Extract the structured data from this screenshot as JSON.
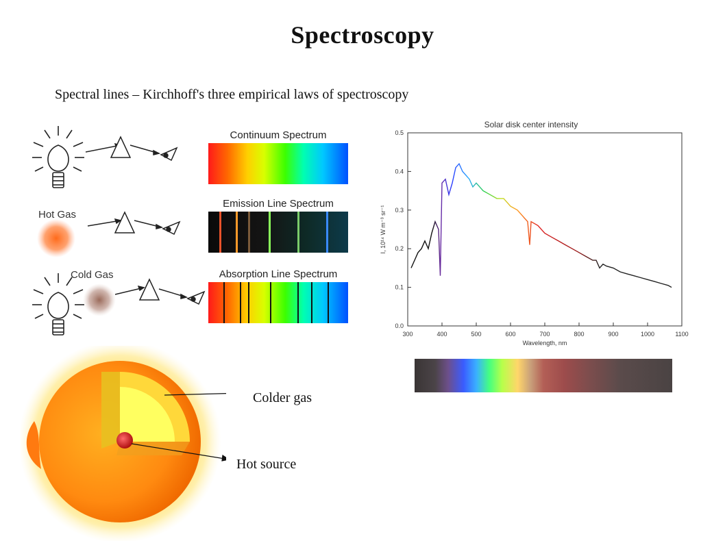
{
  "slide": {
    "title": "Spectroscopy",
    "subtitle": "Spectral lines – Kirchhoff's three empirical laws of spectroscopy"
  },
  "kirchhoff": {
    "continuum_label": "Continuum Spectrum",
    "emission_label": "Emission Line Spectrum",
    "absorption_label": "Absorption Line Spectrum",
    "hot_gas_label": "Hot Gas",
    "cold_gas_label": "Cold Gas",
    "emission_line_colors": [
      "#e8522a",
      "#ff9a2a",
      "#7a5a3a",
      "#8aff5a",
      "#7acc6a",
      "#3a8aff"
    ],
    "absorption_line_count": 7
  },
  "sun": {
    "colder_gas_label": "Colder gas",
    "hot_source_label": "Hot source"
  },
  "chart_data": {
    "type": "line",
    "title": "Solar disk center intensity",
    "xlabel": "Wavelength, nm",
    "ylabel": "I, 10¹⁴ W m⁻³ sr⁻¹",
    "xlim": [
      300,
      1100
    ],
    "ylim": [
      0.0,
      0.5
    ],
    "x_ticks": [
      300,
      400,
      500,
      600,
      700,
      800,
      900,
      1000,
      1100
    ],
    "y_ticks": [
      0.0,
      0.1,
      0.2,
      0.3,
      0.4,
      0.5
    ],
    "series": [
      {
        "x": [
          310,
          320,
          330,
          340,
          350,
          360,
          370,
          380,
          390,
          395,
          400,
          410,
          420,
          430,
          440,
          450,
          460,
          470,
          480,
          490,
          500,
          520,
          540,
          560,
          580,
          600,
          620,
          640,
          650,
          656,
          660,
          680,
          700,
          720,
          740,
          760,
          780,
          800,
          820,
          840,
          850,
          860,
          870,
          880,
          900,
          920,
          940,
          960,
          980,
          1000,
          1020,
          1040,
          1060,
          1070
        ],
        "y": [
          0.15,
          0.17,
          0.19,
          0.2,
          0.22,
          0.2,
          0.24,
          0.27,
          0.25,
          0.13,
          0.37,
          0.38,
          0.34,
          0.37,
          0.41,
          0.42,
          0.4,
          0.39,
          0.38,
          0.36,
          0.37,
          0.35,
          0.34,
          0.33,
          0.33,
          0.31,
          0.3,
          0.28,
          0.27,
          0.21,
          0.27,
          0.26,
          0.24,
          0.23,
          0.22,
          0.21,
          0.2,
          0.19,
          0.18,
          0.17,
          0.17,
          0.15,
          0.16,
          0.155,
          0.15,
          0.14,
          0.135,
          0.13,
          0.125,
          0.12,
          0.115,
          0.11,
          0.105,
          0.1
        ]
      }
    ],
    "grid": false
  }
}
